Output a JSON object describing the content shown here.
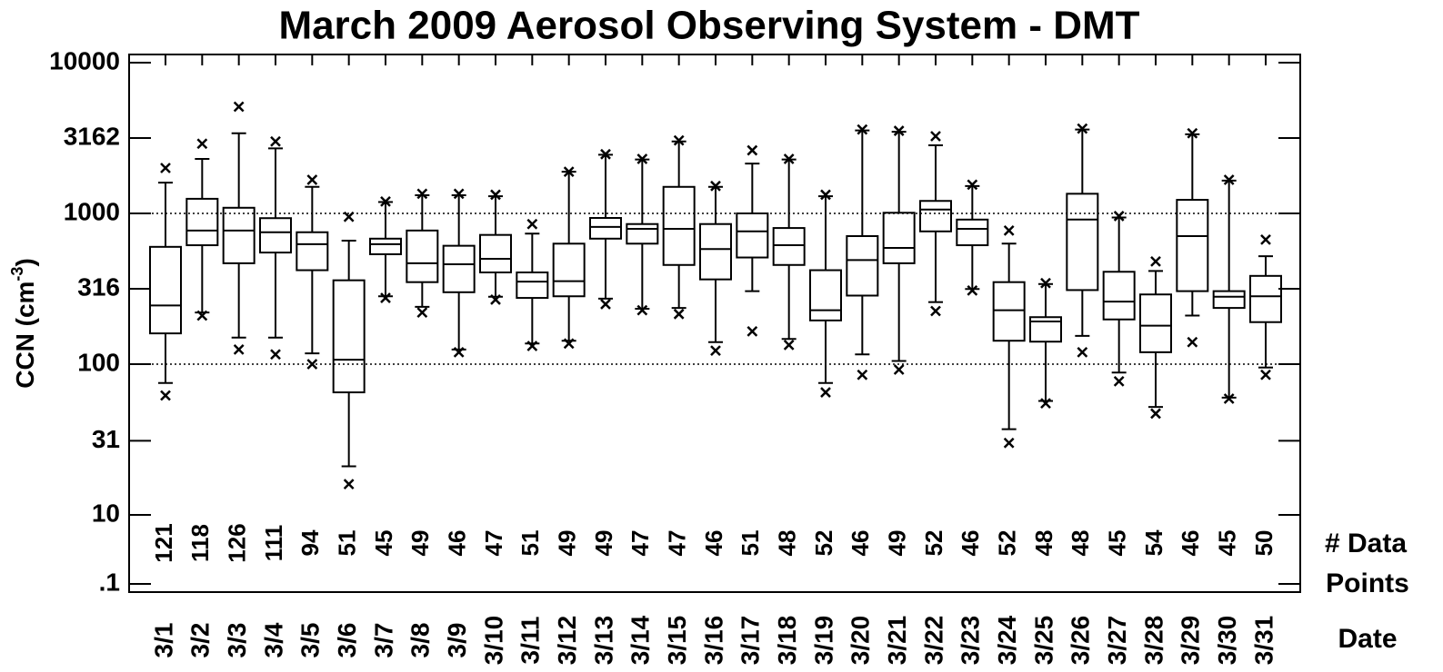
{
  "chart_data": {
    "type": "box",
    "title": "March 2009  Aerosol Observing System - DMT",
    "y_label": "CCN (cm",
    "y_label_sup": "-3",
    "y_label_end": ")",
    "count_label": [
      "# Data",
      "Points"
    ],
    "date_label": "Date",
    "log_scale": true,
    "axis_break_below": 10,
    "ylim": [
      0.1,
      10000
    ],
    "yticks": [
      {
        "value": 0.1,
        "label": ".1"
      },
      10,
      31,
      100,
      316,
      1000,
      3162,
      10000
    ],
    "grid_at": [
      100,
      1000
    ],
    "color": "#000000",
    "categories": [
      "3/1",
      "3/2",
      "3/3",
      "3/4",
      "3/5",
      "3/6",
      "3/7",
      "3/8",
      "3/9",
      "3/10",
      "3/11",
      "3/12",
      "3/13",
      "3/14",
      "3/15",
      "3/16",
      "3/17",
      "3/18",
      "3/19",
      "3/20",
      "3/21",
      "3/22",
      "3/23",
      "3/24",
      "3/25",
      "3/26",
      "3/27",
      "3/28",
      "3/29",
      "3/30",
      "3/31"
    ],
    "counts": [
      121,
      118,
      126,
      111,
      94,
      51,
      45,
      49,
      46,
      47,
      51,
      49,
      49,
      47,
      47,
      46,
      51,
      48,
      52,
      46,
      49,
      52,
      46,
      52,
      48,
      48,
      45,
      54,
      46,
      45,
      50
    ],
    "whisker_low": [
      75,
      220,
      150,
      150,
      118,
      21,
      282,
      240,
      125,
      280,
      137,
      143,
      272,
      233,
      236,
      140,
      305,
      147,
      75,
      116,
      105,
      258,
      315,
      37,
      57,
      154,
      88,
      52,
      210,
      60,
      95
    ],
    "q1": [
      160,
      615,
      467,
      550,
      420,
      65,
      536,
      350,
      300,
      406,
      275,
      282,
      680,
      630,
      455,
      365,
      510,
      455,
      195,
      285,
      467,
      760,
      615,
      143,
      141,
      310,
      198,
      120,
      305,
      236,
      190
    ],
    "median": [
      245,
      770,
      770,
      750,
      625,
      107,
      625,
      467,
      460,
      500,
      353,
      355,
      813,
      790,
      790,
      580,
      760,
      615,
      228,
      490,
      590,
      1060,
      790,
      228,
      192,
      910,
      260,
      180,
      707,
      280,
      282
    ],
    "q3": [
      600,
      1250,
      1090,
      930,
      750,
      360,
      680,
      770,
      610,
      720,
      406,
      630,
      933,
      850,
      1500,
      850,
      1000,
      800,
      420,
      707,
      1010,
      1210,
      910,
      350,
      205,
      1350,
      410,
      290,
      1230,
      305,
      385
    ],
    "whisker_high": [
      1600,
      2300,
      3400,
      2700,
      1500,
      660,
      1190,
      1320,
      1320,
      1300,
      735,
      1890,
      2450,
      2280,
      3000,
      1500,
      2140,
      2280,
      1300,
      3550,
      3480,
      2830,
      1520,
      630,
      340,
      3600,
      940,
      415,
      3350,
      1650,
      520
    ],
    "outlier_low": [
      62,
      210,
      125,
      116,
      100,
      16,
      275,
      220,
      120,
      268,
      132,
      137,
      250,
      228,
      215,
      123,
      165,
      134,
      65,
      85,
      92,
      225,
      308,
      30,
      55,
      120,
      77,
      47,
      140,
      59,
      85
    ],
    "outlier_high": [
      2000,
      2900,
      5100,
      3000,
      1670,
      950,
      1200,
      1350,
      1350,
      1330,
      850,
      1890,
      2470,
      2300,
      3050,
      1520,
      2620,
      2300,
      1330,
      3600,
      3530,
      3250,
      1550,
      770,
      345,
      3650,
      960,
      480,
      3400,
      1670,
      670
    ]
  }
}
